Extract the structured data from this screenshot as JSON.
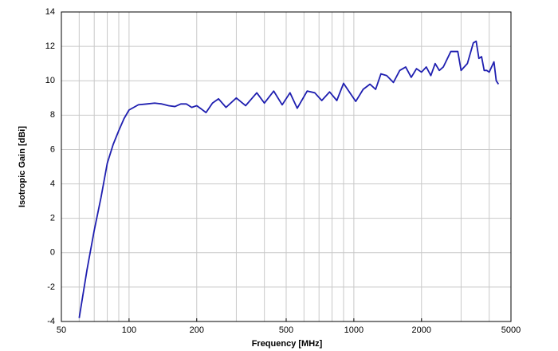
{
  "chart_data": {
    "type": "line",
    "xlabel": "Frequency [MHz]",
    "ylabel": "Isotropic Gain [dBi]",
    "x": [
      60,
      65,
      70,
      75,
      80,
      85,
      90,
      95,
      100,
      110,
      120,
      130,
      140,
      150,
      160,
      170,
      180,
      190,
      200,
      210,
      220,
      235,
      250,
      270,
      300,
      330,
      370,
      400,
      440,
      480,
      520,
      560,
      620,
      670,
      720,
      780,
      840,
      900,
      960,
      1020,
      1100,
      1180,
      1250,
      1320,
      1400,
      1500,
      1600,
      1700,
      1800,
      1900,
      2000,
      2100,
      2200,
      2300,
      2400,
      2500,
      2700,
      2900,
      3000,
      3200,
      3400,
      3500,
      3600,
      3700,
      3800,
      3900,
      4000,
      4200,
      4300,
      4400
    ],
    "series": [
      {
        "color": "#1f1fb0",
        "values": [
          -3.8,
          -1.0,
          1.3,
          3.2,
          5.2,
          6.3,
          7.1,
          7.8,
          8.3,
          8.6,
          8.65,
          8.7,
          8.65,
          8.55,
          8.5,
          8.65,
          8.65,
          8.45,
          8.55,
          8.35,
          8.15,
          8.7,
          8.95,
          8.45,
          9.0,
          8.55,
          9.3,
          8.7,
          9.4,
          8.6,
          9.3,
          8.4,
          9.4,
          9.3,
          8.85,
          9.35,
          8.85,
          9.85,
          9.3,
          8.8,
          9.5,
          9.8,
          9.5,
          10.4,
          10.3,
          9.9,
          10.6,
          10.8,
          10.2,
          10.7,
          10.5,
          10.8,
          10.3,
          11.0,
          10.6,
          10.8,
          11.7,
          11.7,
          10.6,
          11.0,
          12.2,
          12.3,
          11.3,
          11.4,
          10.6,
          10.6,
          10.5,
          11.1,
          10.0,
          9.8
        ]
      }
    ],
    "xscale": "log",
    "xlim": [
      50,
      5000
    ],
    "xticks": [
      50,
      100,
      200,
      500,
      1000,
      2000,
      5000
    ],
    "xgrid": [
      50,
      60,
      70,
      80,
      90,
      100,
      200,
      300,
      400,
      500,
      600,
      700,
      800,
      900,
      1000,
      2000,
      3000,
      4000,
      5000
    ],
    "ylim": [
      -4,
      14
    ],
    "yticks": [
      -4,
      -2,
      0,
      2,
      4,
      6,
      8,
      10,
      12,
      14
    ],
    "grid": true
  }
}
